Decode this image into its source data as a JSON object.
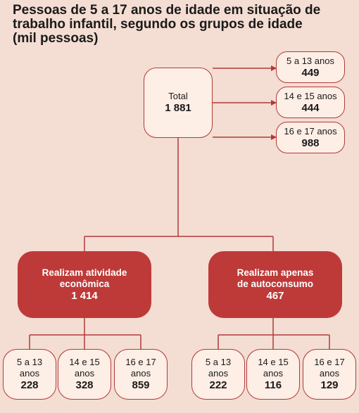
{
  "title": "Pessoas de 5 a 17 anos de idade em situação de\ntrabalho infantil, segundo os grupos de idade\n(mil pessoas)",
  "colors": {
    "line": "#b23a3a",
    "dark_box": "#bd3a39",
    "light_box": "#fdeee6",
    "background": "#f4ddd2"
  },
  "total": {
    "label": "Total",
    "value": "1 881"
  },
  "total_groups": [
    {
      "label": "5 a 13 anos",
      "value": "449"
    },
    {
      "label": "14 e 15 anos",
      "value": "444"
    },
    {
      "label": "16 e 17 anos",
      "value": "988"
    }
  ],
  "economic": {
    "label": "Realizam atividade\neconômica",
    "value": "1 414",
    "groups": [
      {
        "label": "5 a 13\nanos",
        "value": "228"
      },
      {
        "label": "14 e 15\nanos",
        "value": "328"
      },
      {
        "label": "16 e 17\nanos",
        "value": "859"
      }
    ]
  },
  "self_consumption": {
    "label": "Realizam apenas\nde autoconsumo",
    "value": "467",
    "groups": [
      {
        "label": "5 a 13\nanos",
        "value": "222"
      },
      {
        "label": "14 e 15\nanos",
        "value": "116"
      },
      {
        "label": "16 e 17\nanos",
        "value": "129"
      }
    ]
  }
}
